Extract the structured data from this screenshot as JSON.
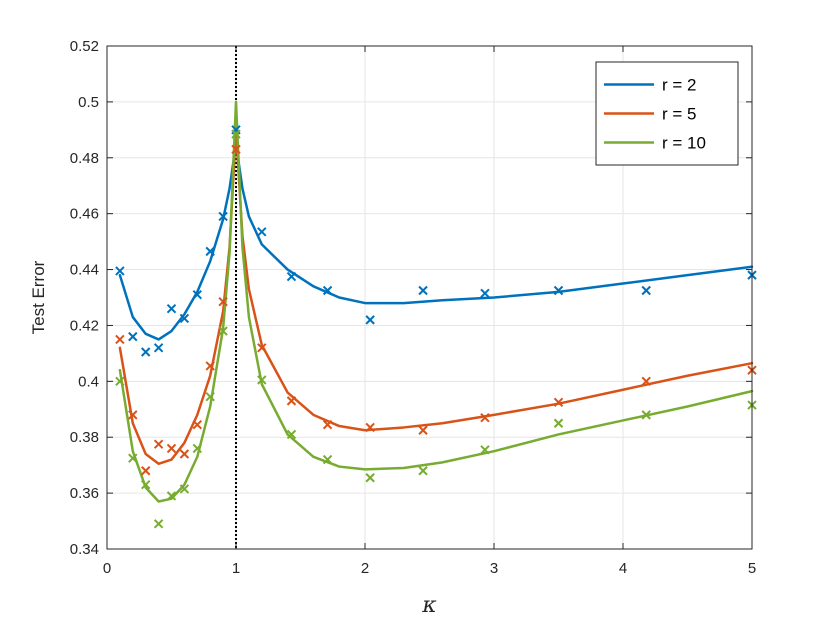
{
  "chart_data": {
    "type": "line",
    "title": "",
    "xlabel": "κ",
    "ylabel": "Test Error",
    "xlim": [
      0,
      5
    ],
    "ylim": [
      0.34,
      0.52
    ],
    "xticks": [
      0,
      1,
      2,
      3,
      4,
      5
    ],
    "xtick_labels": [
      "0",
      "1",
      "2",
      "3",
      "4",
      "5"
    ],
    "yticks": [
      0.34,
      0.36,
      0.38,
      0.4,
      0.42,
      0.44,
      0.46,
      0.48,
      0.5,
      0.52
    ],
    "ytick_labels": [
      "0.34",
      "0.36",
      "0.38",
      "0.4",
      "0.42",
      "0.44",
      "0.46",
      "0.48",
      "0.5",
      "0.52"
    ],
    "grid": true,
    "legend_position": "top-right",
    "vline": {
      "x": 1,
      "style": "dotted",
      "color": "#000000"
    },
    "series": [
      {
        "name": "r = 2",
        "color": "#0072BD",
        "line": {
          "x": [
            0.1,
            0.2,
            0.3,
            0.4,
            0.5,
            0.6,
            0.7,
            0.8,
            0.9,
            0.95,
            1.0,
            1.05,
            1.1,
            1.2,
            1.4,
            1.6,
            1.8,
            2.0,
            2.3,
            2.6,
            3.0,
            3.5,
            4.0,
            4.5,
            5.0
          ],
          "y": [
            0.438,
            0.423,
            0.417,
            0.415,
            0.418,
            0.424,
            0.432,
            0.443,
            0.458,
            0.469,
            0.485,
            0.469,
            0.459,
            0.449,
            0.44,
            0.434,
            0.43,
            0.428,
            0.428,
            0.429,
            0.43,
            0.432,
            0.435,
            0.438,
            0.441
          ]
        },
        "markers": {
          "x": [
            0.1,
            0.2,
            0.3,
            0.4,
            0.5,
            0.6,
            0.7,
            0.8,
            0.9,
            1.0,
            1.2,
            1.43,
            1.71,
            2.04,
            2.45,
            2.93,
            3.5,
            4.18,
            5.0
          ],
          "y": [
            0.4395,
            0.416,
            0.4105,
            0.412,
            0.426,
            0.4225,
            0.431,
            0.4465,
            0.459,
            0.49,
            0.4535,
            0.4375,
            0.4325,
            0.422,
            0.4325,
            0.4315,
            0.4325,
            0.4325,
            0.438
          ]
        }
      },
      {
        "name": "r = 5",
        "color": "#D95319",
        "line": {
          "x": [
            0.1,
            0.2,
            0.3,
            0.4,
            0.5,
            0.6,
            0.7,
            0.8,
            0.9,
            0.95,
            1.0,
            1.05,
            1.1,
            1.2,
            1.4,
            1.6,
            1.8,
            2.0,
            2.3,
            2.6,
            3.0,
            3.5,
            4.0,
            4.5,
            5.0
          ],
          "y": [
            0.412,
            0.385,
            0.374,
            0.3705,
            0.372,
            0.378,
            0.388,
            0.402,
            0.425,
            0.448,
            0.49,
            0.452,
            0.433,
            0.413,
            0.396,
            0.388,
            0.384,
            0.3825,
            0.3835,
            0.385,
            0.388,
            0.392,
            0.397,
            0.402,
            0.4065
          ]
        },
        "markers": {
          "x": [
            0.1,
            0.2,
            0.3,
            0.4,
            0.5,
            0.6,
            0.7,
            0.8,
            0.9,
            1.0,
            1.2,
            1.43,
            1.71,
            2.04,
            2.45,
            2.93,
            3.5,
            4.18,
            5.0
          ],
          "y": [
            0.415,
            0.388,
            0.368,
            0.3775,
            0.376,
            0.374,
            0.3845,
            0.4055,
            0.4285,
            0.483,
            0.412,
            0.393,
            0.3845,
            0.3835,
            0.3825,
            0.387,
            0.3925,
            0.4,
            0.404
          ]
        }
      },
      {
        "name": "r = 10",
        "color": "#77AC30",
        "line": {
          "x": [
            0.1,
            0.2,
            0.3,
            0.4,
            0.5,
            0.6,
            0.7,
            0.8,
            0.9,
            0.95,
            1.0,
            1.05,
            1.1,
            1.2,
            1.4,
            1.6,
            1.8,
            2.0,
            2.3,
            2.6,
            3.0,
            3.5,
            4.0,
            4.5,
            5.0
          ],
          "y": [
            0.404,
            0.375,
            0.362,
            0.357,
            0.358,
            0.363,
            0.373,
            0.391,
            0.419,
            0.446,
            0.5,
            0.448,
            0.423,
            0.399,
            0.381,
            0.373,
            0.3695,
            0.3685,
            0.369,
            0.371,
            0.375,
            0.381,
            0.386,
            0.391,
            0.3965
          ]
        },
        "markers": {
          "x": [
            0.1,
            0.2,
            0.3,
            0.4,
            0.5,
            0.6,
            0.7,
            0.8,
            0.9,
            1.0,
            1.2,
            1.43,
            1.71,
            2.04,
            2.45,
            2.93,
            3.5,
            4.18,
            5.0
          ],
          "y": [
            0.4,
            0.3725,
            0.363,
            0.349,
            0.359,
            0.3615,
            0.376,
            0.3945,
            0.418,
            0.4885,
            0.4005,
            0.381,
            0.372,
            0.3655,
            0.368,
            0.3755,
            0.385,
            0.388,
            0.3915
          ]
        }
      }
    ]
  }
}
